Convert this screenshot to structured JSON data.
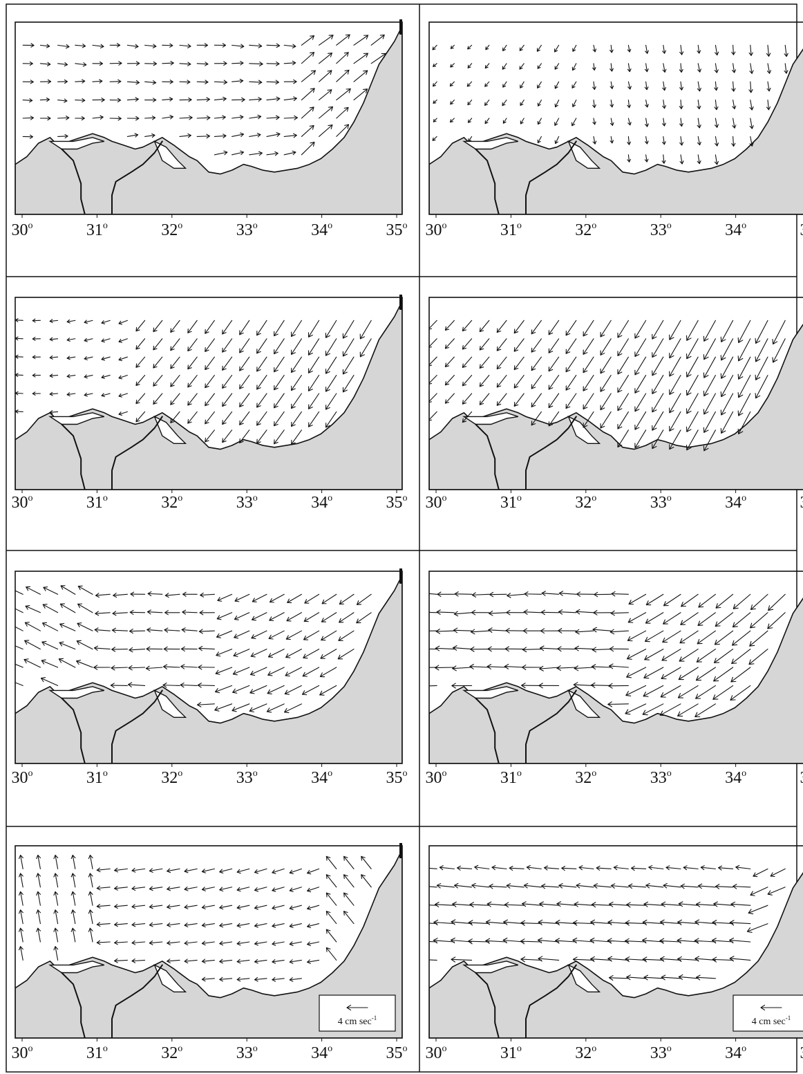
{
  "figure": {
    "columns": 2,
    "rows": 4,
    "longitude_ticks": [
      "30°",
      "31°",
      "32°",
      "33°",
      "34°",
      "35°"
    ],
    "longitude_range": [
      30,
      35
    ],
    "scale_legend": {
      "label": "4 cm sec-1",
      "text_main": "4 cm sec",
      "text_sup": "-1",
      "speed_cm_s": 4
    },
    "panels": [
      {
        "row": 0,
        "col": 0,
        "pattern": "eastward",
        "legend": false
      },
      {
        "row": 0,
        "col": 1,
        "pattern": "southward",
        "legend": false
      },
      {
        "row": 1,
        "col": 0,
        "pattern": "southwest",
        "legend": false
      },
      {
        "row": 1,
        "col": 1,
        "pattern": "southwest-strong",
        "legend": false
      },
      {
        "row": 2,
        "col": 0,
        "pattern": "westward",
        "legend": false
      },
      {
        "row": 2,
        "col": 1,
        "pattern": "westward-strong",
        "legend": false
      },
      {
        "row": 3,
        "col": 0,
        "pattern": "mixed",
        "legend": true
      },
      {
        "row": 3,
        "col": 1,
        "pattern": "westward-jet",
        "legend": true
      }
    ]
  },
  "colors": {
    "land": "#d6d6d6",
    "ink": "#111111",
    "water": "#ffffff"
  }
}
